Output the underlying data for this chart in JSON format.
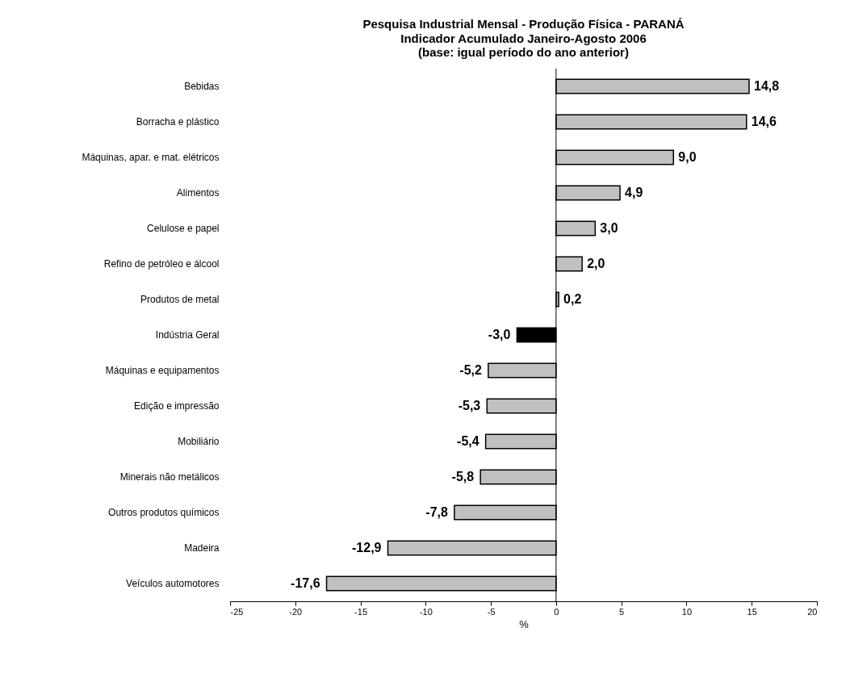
{
  "chart_data": {
    "type": "bar",
    "orientation": "horizontal",
    "title": "Pesquisa Industrial Mensal - Produção Física - PARANÁ",
    "subtitle": [
      "Indicador Acumulado Janeiro-Agosto 2006",
      "(base: igual período do ano anterior)"
    ],
    "xlabel": "%",
    "categories": [
      "Bebidas",
      "Borracha e plástico",
      "Máquinas, apar. e mat. elétricos",
      "Alimentos",
      "Celulose e papel ",
      "Refino de petróleo e álcool",
      "Produtos de metal",
      "Indústria Geral",
      "Máquinas e equipamentos",
      "Edição e impressão ",
      "Mobiliário",
      "Minerais não metálicos",
      "Outros produtos químicos",
      "Madeira",
      "Veículos automotores"
    ],
    "values": [
      14.8,
      14.6,
      9.0,
      4.9,
      3.0,
      2.0,
      0.2,
      -3.0,
      -5.2,
      -5.3,
      -5.4,
      -5.8,
      -7.8,
      -12.9,
      -17.6
    ],
    "value_labels": [
      "14,8",
      "14,6",
      "9,0",
      "4,9",
      "3,0",
      "2,0",
      "0,2",
      "-3,0",
      "-5,2",
      "-5,3",
      "-5,4",
      "-5,8",
      "-7,8",
      "-12,9",
      "-17,6"
    ],
    "colors": [
      "#c0c0c0",
      "#c0c0c0",
      "#c0c0c0",
      "#c0c0c0",
      "#c0c0c0",
      "#c0c0c0",
      "#c0c0c0",
      "#000000",
      "#c0c0c0",
      "#c0c0c0",
      "#c0c0c0",
      "#c0c0c0",
      "#c0c0c0",
      "#c0c0c0",
      "#c0c0c0"
    ],
    "xlim": [
      -25,
      20
    ],
    "xticks": [
      -25,
      -20,
      -15,
      -10,
      -5,
      0,
      5,
      10,
      15,
      20
    ],
    "ref_lines": [
      {
        "axis": "x",
        "value": 0,
        "color": "#000000"
      }
    ],
    "grid": false
  }
}
